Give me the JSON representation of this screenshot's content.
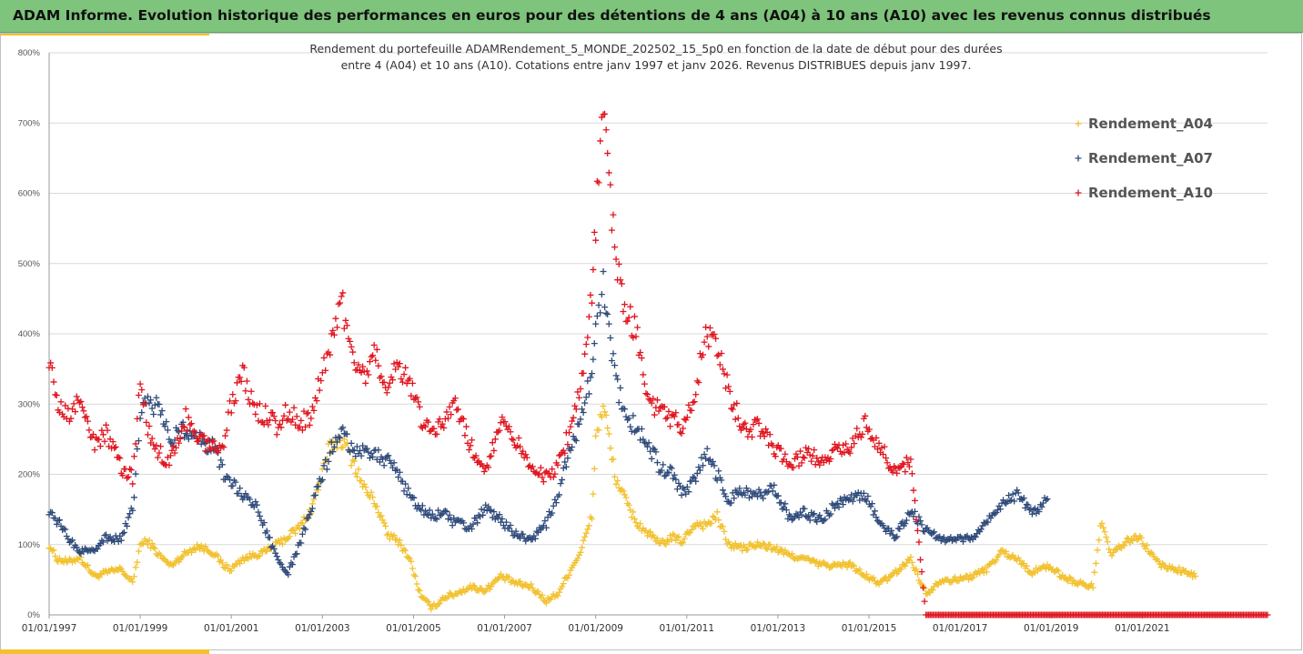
{
  "header": {
    "title": "ADAM Informe. Evolution historique des performances en euros pour des détentions de 4 ans (A04) à 10 ans (A10) avec les revenus connus distribués"
  },
  "colors": {
    "header_bg": "#7ec47c",
    "accent": "#f2c12e",
    "A04": "#f2c12e",
    "A07": "#2e4a7a",
    "A10": "#e0141e"
  },
  "chart_data": {
    "type": "scatter",
    "title_lines": [
      "Rendement du portefeuille ADAMRendement_5_MONDE_202502_15_5p0 en fonction de la date de début pour des durées",
      "entre 4 (A04) et 10 ans (A10). Cotations entre janv 1997 et janv 2026. Revenus DISTRIBUES depuis janv 1997."
    ],
    "xlabel": "",
    "ylabel": "",
    "x_range": [
      "1997-01-01",
      "2023-10-01"
    ],
    "ylim": [
      0,
      800
    ],
    "y_unit": "%",
    "y_ticks": [
      "0%",
      "100%",
      "200%",
      "300%",
      "400%",
      "500%",
      "600%",
      "700%",
      "800%"
    ],
    "x_ticks": [
      "01/01/1997",
      "01/01/1999",
      "01/01/2001",
      "01/01/2003",
      "01/01/2005",
      "01/01/2007",
      "01/01/2009",
      "01/01/2011",
      "01/01/2013",
      "01/01/2015",
      "01/01/2017",
      "01/01/2019",
      "01/01/2021"
    ],
    "grid": "horizontal",
    "legend": "right",
    "marker": "+",
    "series": [
      {
        "name": "Rendement_A04",
        "color": "#f2c12e",
        "points": [
          [
            "1997-01",
            100
          ],
          [
            "1997-03",
            80
          ],
          [
            "1997-06",
            75
          ],
          [
            "1997-09",
            82
          ],
          [
            "1998-01",
            55
          ],
          [
            "1998-04",
            60
          ],
          [
            "1998-08",
            65
          ],
          [
            "1998-11",
            45
          ],
          [
            "1999-01",
            100
          ],
          [
            "1999-03",
            105
          ],
          [
            "1999-06",
            85
          ],
          [
            "1999-09",
            70
          ],
          [
            "2000-01",
            88
          ],
          [
            "2000-04",
            98
          ],
          [
            "2000-08",
            90
          ],
          [
            "2000-11",
            70
          ],
          [
            "2001-01",
            65
          ],
          [
            "2001-04",
            80
          ],
          [
            "2001-07",
            85
          ],
          [
            "2001-10",
            90
          ],
          [
            "2002-01",
            100
          ],
          [
            "2002-04",
            112
          ],
          [
            "2002-07",
            125
          ],
          [
            "2002-10",
            150
          ],
          [
            "2003-01",
            200
          ],
          [
            "2003-03",
            240
          ],
          [
            "2003-06",
            250
          ],
          [
            "2003-09",
            220
          ],
          [
            "2003-12",
            180
          ],
          [
            "2004-03",
            160
          ],
          [
            "2004-06",
            115
          ],
          [
            "2004-09",
            105
          ],
          [
            "2004-12",
            80
          ],
          [
            "2005-03",
            25
          ],
          [
            "2005-06",
            10
          ],
          [
            "2005-09",
            25
          ],
          [
            "2005-12",
            30
          ],
          [
            "2006-04",
            40
          ],
          [
            "2006-08",
            35
          ],
          [
            "2006-12",
            55
          ],
          [
            "2007-04",
            45
          ],
          [
            "2007-08",
            40
          ],
          [
            "2007-12",
            20
          ],
          [
            "2008-03",
            30
          ],
          [
            "2008-06",
            60
          ],
          [
            "2008-09",
            90
          ],
          [
            "2008-12",
            140
          ],
          [
            "2009-01",
            250
          ],
          [
            "2009-03",
            300
          ],
          [
            "2009-06",
            200
          ],
          [
            "2009-09",
            160
          ],
          [
            "2009-12",
            130
          ],
          [
            "2010-03",
            115
          ],
          [
            "2010-06",
            100
          ],
          [
            "2010-09",
            110
          ],
          [
            "2010-12",
            105
          ],
          [
            "2011-03",
            130
          ],
          [
            "2011-06",
            128
          ],
          [
            "2011-09",
            140
          ],
          [
            "2011-12",
            100
          ],
          [
            "2012-04",
            95
          ],
          [
            "2012-08",
            100
          ],
          [
            "2012-12",
            95
          ],
          [
            "2013-04",
            85
          ],
          [
            "2013-08",
            80
          ],
          [
            "2013-12",
            72
          ],
          [
            "2014-04",
            70
          ],
          [
            "2014-08",
            72
          ],
          [
            "2014-12",
            55
          ],
          [
            "2015-04",
            45
          ],
          [
            "2015-08",
            60
          ],
          [
            "2015-12",
            80
          ],
          [
            "2016-04",
            30
          ],
          [
            "2016-08",
            50
          ],
          [
            "2016-12",
            50
          ],
          [
            "2017-04",
            55
          ],
          [
            "2017-08",
            65
          ],
          [
            "2017-12",
            90
          ],
          [
            "2018-04",
            80
          ],
          [
            "2018-08",
            60
          ],
          [
            "2018-12",
            70
          ],
          [
            "2019-04",
            55
          ],
          [
            "2019-08",
            45
          ],
          [
            "2019-12",
            40
          ],
          [
            "2020-02",
            130
          ],
          [
            "2020-05",
            85
          ],
          [
            "2020-09",
            105
          ],
          [
            "2020-12",
            110
          ],
          [
            "2021-03",
            90
          ],
          [
            "2021-06",
            70
          ],
          [
            "2021-10",
            65
          ],
          [
            "2022-03",
            55
          ]
        ]
      },
      {
        "name": "Rendement_A07",
        "color": "#2e4a7a",
        "points": [
          [
            "1997-01",
            150
          ],
          [
            "1997-03",
            135
          ],
          [
            "1997-06",
            110
          ],
          [
            "1997-09",
            90
          ],
          [
            "1998-01",
            95
          ],
          [
            "1998-04",
            110
          ],
          [
            "1998-08",
            108
          ],
          [
            "1998-11",
            150
          ],
          [
            "1999-01",
            280
          ],
          [
            "1999-03",
            305
          ],
          [
            "1999-06",
            295
          ],
          [
            "1999-09",
            250
          ],
          [
            "2000-01",
            265
          ],
          [
            "2000-04",
            250
          ],
          [
            "2000-08",
            240
          ],
          [
            "2000-11",
            200
          ],
          [
            "2001-01",
            190
          ],
          [
            "2001-04",
            170
          ],
          [
            "2001-07",
            160
          ],
          [
            "2001-10",
            120
          ],
          [
            "2002-01",
            80
          ],
          [
            "2002-04",
            60
          ],
          [
            "2002-07",
            100
          ],
          [
            "2002-10",
            150
          ],
          [
            "2003-01",
            200
          ],
          [
            "2003-03",
            230
          ],
          [
            "2003-06",
            270
          ],
          [
            "2003-09",
            230
          ],
          [
            "2003-12",
            240
          ],
          [
            "2004-03",
            230
          ],
          [
            "2004-06",
            220
          ],
          [
            "2004-09",
            200
          ],
          [
            "2004-12",
            170
          ],
          [
            "2005-03",
            150
          ],
          [
            "2005-06",
            140
          ],
          [
            "2005-09",
            145
          ],
          [
            "2005-12",
            130
          ],
          [
            "2006-04",
            125
          ],
          [
            "2006-08",
            150
          ],
          [
            "2006-12",
            135
          ],
          [
            "2007-04",
            115
          ],
          [
            "2007-08",
            105
          ],
          [
            "2007-12",
            130
          ],
          [
            "2008-03",
            170
          ],
          [
            "2008-06",
            230
          ],
          [
            "2008-09",
            270
          ],
          [
            "2008-12",
            350
          ],
          [
            "2009-01",
            400
          ],
          [
            "2009-03",
            470
          ],
          [
            "2009-06",
            340
          ],
          [
            "2009-09",
            280
          ],
          [
            "2009-12",
            265
          ],
          [
            "2010-03",
            240
          ],
          [
            "2010-06",
            210
          ],
          [
            "2010-09",
            200
          ],
          [
            "2010-12",
            175
          ],
          [
            "2011-03",
            190
          ],
          [
            "2011-06",
            230
          ],
          [
            "2011-09",
            200
          ],
          [
            "2011-12",
            165
          ],
          [
            "2012-04",
            175
          ],
          [
            "2012-08",
            170
          ],
          [
            "2012-12",
            180
          ],
          [
            "2013-04",
            140
          ],
          [
            "2013-08",
            145
          ],
          [
            "2013-12",
            135
          ],
          [
            "2014-04",
            155
          ],
          [
            "2014-08",
            165
          ],
          [
            "2014-12",
            170
          ],
          [
            "2015-04",
            130
          ],
          [
            "2015-08",
            110
          ],
          [
            "2015-12",
            150
          ],
          [
            "2016-04",
            120
          ],
          [
            "2016-08",
            110
          ],
          [
            "2016-12",
            105
          ],
          [
            "2017-04",
            110
          ],
          [
            "2017-08",
            130
          ],
          [
            "2017-12",
            160
          ],
          [
            "2018-04",
            170
          ],
          [
            "2018-08",
            145
          ],
          [
            "2018-12",
            165
          ]
        ]
      },
      {
        "name": "Rendement_A10",
        "color": "#e0141e",
        "points": [
          [
            "1997-01",
            370
          ],
          [
            "1997-03",
            300
          ],
          [
            "1997-06",
            280
          ],
          [
            "1997-09",
            310
          ],
          [
            "1998-01",
            240
          ],
          [
            "1998-04",
            260
          ],
          [
            "1998-08",
            210
          ],
          [
            "1998-11",
            195
          ],
          [
            "1999-01",
            330
          ],
          [
            "1999-03",
            260
          ],
          [
            "1999-06",
            230
          ],
          [
            "1999-09",
            220
          ],
          [
            "2000-01",
            280
          ],
          [
            "2000-04",
            250
          ],
          [
            "2000-08",
            240
          ],
          [
            "2000-11",
            250
          ],
          [
            "2001-01",
            300
          ],
          [
            "2001-04",
            350
          ],
          [
            "2001-07",
            290
          ],
          [
            "2001-10",
            285
          ],
          [
            "2002-01",
            270
          ],
          [
            "2002-04",
            290
          ],
          [
            "2002-07",
            275
          ],
          [
            "2002-10",
            280
          ],
          [
            "2003-01",
            350
          ],
          [
            "2003-03",
            380
          ],
          [
            "2003-06",
            450
          ],
          [
            "2003-09",
            360
          ],
          [
            "2003-12",
            340
          ],
          [
            "2004-03",
            370
          ],
          [
            "2004-06",
            330
          ],
          [
            "2004-09",
            350
          ],
          [
            "2004-12",
            335
          ],
          [
            "2005-03",
            275
          ],
          [
            "2005-06",
            260
          ],
          [
            "2005-09",
            280
          ],
          [
            "2005-12",
            300
          ],
          [
            "2006-04",
            240
          ],
          [
            "2006-08",
            210
          ],
          [
            "2006-12",
            270
          ],
          [
            "2007-04",
            250
          ],
          [
            "2007-08",
            210
          ],
          [
            "2007-12",
            195
          ],
          [
            "2008-03",
            210
          ],
          [
            "2008-06",
            260
          ],
          [
            "2008-09",
            330
          ],
          [
            "2008-12",
            450
          ],
          [
            "2009-01",
            560
          ],
          [
            "2009-03",
            720
          ],
          [
            "2009-06",
            520
          ],
          [
            "2009-09",
            430
          ],
          [
            "2009-12",
            400
          ],
          [
            "2010-03",
            300
          ],
          [
            "2010-06",
            290
          ],
          [
            "2010-09",
            280
          ],
          [
            "2010-12",
            270
          ],
          [
            "2011-03",
            310
          ],
          [
            "2011-06",
            400
          ],
          [
            "2011-09",
            380
          ],
          [
            "2011-12",
            320
          ],
          [
            "2012-04",
            260
          ],
          [
            "2012-08",
            270
          ],
          [
            "2012-12",
            240
          ],
          [
            "2013-04",
            210
          ],
          [
            "2013-08",
            230
          ],
          [
            "2013-12",
            220
          ],
          [
            "2014-04",
            235
          ],
          [
            "2014-08",
            240
          ],
          [
            "2014-12",
            270
          ],
          [
            "2015-04",
            240
          ],
          [
            "2015-08",
            200
          ],
          [
            "2015-12",
            220
          ],
          [
            "2016-04",
            0
          ],
          [
            "2017-01",
            0
          ],
          [
            "2018-01",
            0
          ],
          [
            "2019-01",
            0
          ],
          [
            "2020-01",
            0
          ],
          [
            "2021-01",
            0
          ],
          [
            "2022-01",
            0
          ],
          [
            "2023-01",
            0
          ],
          [
            "2023-10",
            0
          ]
        ]
      }
    ]
  }
}
